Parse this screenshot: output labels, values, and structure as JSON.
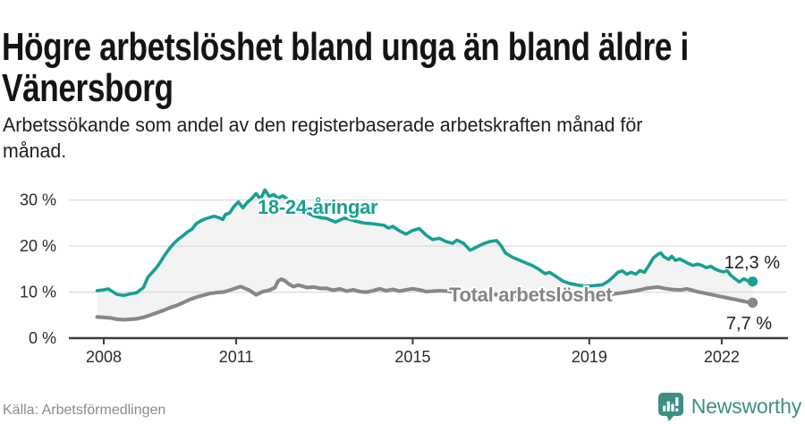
{
  "header": {
    "title": "Högre arbetslöshet bland unga än bland äldre i Vänersborg",
    "subtitle": "Arbetssökande som andel av den registerbaserade arbetskraften månad för månad."
  },
  "footer": {
    "source": "Källa: Arbetsförmedlingen",
    "brand": "Newsworthy"
  },
  "colors": {
    "accent_teal": "#17A091",
    "line_gray": "#878787",
    "area_fill": "#F3F3F3",
    "gridline": "#DBDBDB",
    "axis": "#3C3C3C",
    "tick_text": "#2B2B2B",
    "brand_teal": "#3E8E86"
  },
  "chart_data": {
    "type": "line",
    "title": "Högre arbetslöshet bland unga än bland äldre i Vänersborg",
    "ylabel": "",
    "xlabel": "",
    "ylim": [
      0,
      33
    ],
    "grid": true,
    "legend_position": "inline-labels",
    "y_ticks": [
      {
        "value": 0,
        "label": "0 %"
      },
      {
        "value": 10,
        "label": "10 %"
      },
      {
        "value": 20,
        "label": "20 %"
      },
      {
        "value": 30,
        "label": "30 %"
      }
    ],
    "x_ticks": [
      {
        "year": 2008,
        "label": "2008"
      },
      {
        "year": 2011,
        "label": "2011"
      },
      {
        "year": 2015,
        "label": "2015"
      },
      {
        "year": 2019,
        "label": "2019"
      },
      {
        "year": 2022,
        "label": "2022"
      }
    ],
    "series": [
      {
        "name": "18-24-åringar",
        "color": "#17A091",
        "end_label": "12,3 %",
        "end_value": 12.3,
        "points": [
          [
            2007.85,
            10.3
          ],
          [
            2008.0,
            10.5
          ],
          [
            2008.1,
            10.7
          ],
          [
            2008.2,
            10.1
          ],
          [
            2008.3,
            9.5
          ],
          [
            2008.45,
            9.3
          ],
          [
            2008.6,
            9.6
          ],
          [
            2008.75,
            9.9
          ],
          [
            2008.9,
            11.0
          ],
          [
            2009.0,
            13.2
          ],
          [
            2009.1,
            14.3
          ],
          [
            2009.2,
            15.4
          ],
          [
            2009.3,
            16.8
          ],
          [
            2009.4,
            18.3
          ],
          [
            2009.5,
            19.6
          ],
          [
            2009.6,
            20.7
          ],
          [
            2009.7,
            21.6
          ],
          [
            2009.8,
            22.3
          ],
          [
            2009.9,
            23.1
          ],
          [
            2010.0,
            23.7
          ],
          [
            2010.1,
            24.9
          ],
          [
            2010.2,
            25.5
          ],
          [
            2010.3,
            25.9
          ],
          [
            2010.4,
            26.2
          ],
          [
            2010.5,
            26.5
          ],
          [
            2010.6,
            26.2
          ],
          [
            2010.7,
            25.8
          ],
          [
            2010.75,
            26.8
          ],
          [
            2010.85,
            27.2
          ],
          [
            2010.95,
            28.6
          ],
          [
            2011.05,
            29.6
          ],
          [
            2011.15,
            28.3
          ],
          [
            2011.25,
            29.5
          ],
          [
            2011.35,
            30.3
          ],
          [
            2011.45,
            31.4
          ],
          [
            2011.55,
            30.2
          ],
          [
            2011.65,
            32.2
          ],
          [
            2011.75,
            30.8
          ],
          [
            2011.85,
            31.2
          ],
          [
            2011.95,
            30.4
          ],
          [
            2012.05,
            30.9
          ],
          [
            2012.15,
            30.3
          ],
          [
            2012.3,
            29.3
          ],
          [
            2012.45,
            28.2
          ],
          [
            2012.6,
            27.3
          ],
          [
            2012.75,
            26.6
          ],
          [
            2012.9,
            26.2
          ],
          [
            2013.05,
            26.0
          ],
          [
            2013.25,
            25.2
          ],
          [
            2013.45,
            26.1
          ],
          [
            2013.6,
            25.7
          ],
          [
            2013.75,
            25.3
          ],
          [
            2013.9,
            25.0
          ],
          [
            2014.05,
            24.9
          ],
          [
            2014.2,
            24.7
          ],
          [
            2014.35,
            24.5
          ],
          [
            2014.45,
            23.9
          ],
          [
            2014.55,
            24.3
          ],
          [
            2014.7,
            23.3
          ],
          [
            2014.85,
            22.6
          ],
          [
            2015.0,
            23.4
          ],
          [
            2015.15,
            23.8
          ],
          [
            2015.3,
            22.4
          ],
          [
            2015.45,
            21.4
          ],
          [
            2015.6,
            21.7
          ],
          [
            2015.75,
            21.0
          ],
          [
            2015.9,
            20.6
          ],
          [
            2016.0,
            21.3
          ],
          [
            2016.15,
            20.6
          ],
          [
            2016.3,
            19.1
          ],
          [
            2016.45,
            19.8
          ],
          [
            2016.6,
            20.5
          ],
          [
            2016.75,
            21.0
          ],
          [
            2016.9,
            21.2
          ],
          [
            2017.0,
            20.1
          ],
          [
            2017.1,
            18.5
          ],
          [
            2017.25,
            17.6
          ],
          [
            2017.4,
            17.0
          ],
          [
            2017.55,
            16.4
          ],
          [
            2017.7,
            15.8
          ],
          [
            2017.85,
            15.0
          ],
          [
            2018.0,
            14.0
          ],
          [
            2018.1,
            14.3
          ],
          [
            2018.25,
            13.4
          ],
          [
            2018.4,
            12.4
          ],
          [
            2018.55,
            11.9
          ],
          [
            2018.7,
            11.6
          ],
          [
            2018.9,
            11.3
          ],
          [
            2019.1,
            11.4
          ],
          [
            2019.3,
            11.6
          ],
          [
            2019.45,
            12.5
          ],
          [
            2019.55,
            13.4
          ],
          [
            2019.65,
            14.3
          ],
          [
            2019.75,
            14.6
          ],
          [
            2019.85,
            13.9
          ],
          [
            2019.95,
            14.3
          ],
          [
            2020.05,
            13.9
          ],
          [
            2020.15,
            14.7
          ],
          [
            2020.25,
            14.3
          ],
          [
            2020.35,
            15.8
          ],
          [
            2020.45,
            17.4
          ],
          [
            2020.55,
            18.2
          ],
          [
            2020.62,
            18.5
          ],
          [
            2020.7,
            17.6
          ],
          [
            2020.8,
            17.1
          ],
          [
            2020.87,
            17.8
          ],
          [
            2020.95,
            16.9
          ],
          [
            2021.05,
            17.2
          ],
          [
            2021.15,
            16.7
          ],
          [
            2021.25,
            16.2
          ],
          [
            2021.35,
            15.8
          ],
          [
            2021.45,
            16.1
          ],
          [
            2021.55,
            15.8
          ],
          [
            2021.65,
            15.3
          ],
          [
            2021.75,
            15.6
          ],
          [
            2021.85,
            15.0
          ],
          [
            2021.95,
            14.6
          ],
          [
            2022.05,
            14.4
          ],
          [
            2022.12,
            14.7
          ],
          [
            2022.2,
            13.7
          ],
          [
            2022.3,
            12.9
          ],
          [
            2022.4,
            12.2
          ],
          [
            2022.5,
            12.9
          ],
          [
            2022.6,
            12.4
          ],
          [
            2022.7,
            12.3
          ]
        ]
      },
      {
        "name": "Total arbetslöshet",
        "color": "#878787",
        "end_label": "7,7 %",
        "end_value": 7.7,
        "points": [
          [
            2007.85,
            4.6
          ],
          [
            2008.0,
            4.5
          ],
          [
            2008.15,
            4.4
          ],
          [
            2008.3,
            4.1
          ],
          [
            2008.45,
            4.0
          ],
          [
            2008.6,
            4.1
          ],
          [
            2008.75,
            4.2
          ],
          [
            2008.9,
            4.5
          ],
          [
            2009.05,
            5.0
          ],
          [
            2009.2,
            5.5
          ],
          [
            2009.35,
            6.0
          ],
          [
            2009.5,
            6.6
          ],
          [
            2009.65,
            7.1
          ],
          [
            2009.8,
            7.7
          ],
          [
            2009.95,
            8.4
          ],
          [
            2010.1,
            8.9
          ],
          [
            2010.25,
            9.3
          ],
          [
            2010.4,
            9.7
          ],
          [
            2010.55,
            9.9
          ],
          [
            2010.7,
            10.0
          ],
          [
            2010.85,
            10.4
          ],
          [
            2011.0,
            10.9
          ],
          [
            2011.1,
            11.2
          ],
          [
            2011.2,
            10.8
          ],
          [
            2011.3,
            10.4
          ],
          [
            2011.45,
            9.4
          ],
          [
            2011.6,
            10.1
          ],
          [
            2011.75,
            10.4
          ],
          [
            2011.88,
            11.0
          ],
          [
            2011.95,
            12.4
          ],
          [
            2012.02,
            12.8
          ],
          [
            2012.1,
            12.5
          ],
          [
            2012.2,
            11.7
          ],
          [
            2012.3,
            11.2
          ],
          [
            2012.4,
            11.5
          ],
          [
            2012.5,
            11.3
          ],
          [
            2012.6,
            11.0
          ],
          [
            2012.75,
            11.1
          ],
          [
            2012.9,
            10.8
          ],
          [
            2013.05,
            10.8
          ],
          [
            2013.2,
            10.4
          ],
          [
            2013.35,
            10.7
          ],
          [
            2013.5,
            10.2
          ],
          [
            2013.65,
            10.5
          ],
          [
            2013.8,
            10.1
          ],
          [
            2013.95,
            10.0
          ],
          [
            2014.1,
            10.3
          ],
          [
            2014.25,
            10.7
          ],
          [
            2014.4,
            10.3
          ],
          [
            2014.55,
            10.6
          ],
          [
            2014.7,
            10.2
          ],
          [
            2014.85,
            10.5
          ],
          [
            2015.0,
            10.7
          ],
          [
            2015.15,
            10.5
          ],
          [
            2015.3,
            10.1
          ],
          [
            2015.45,
            10.2
          ],
          [
            2015.6,
            10.3
          ],
          [
            2015.8,
            10.2
          ],
          [
            2016.0,
            10.0
          ],
          [
            2016.3,
            9.8
          ],
          [
            2016.6,
            9.6
          ],
          [
            2016.9,
            9.4
          ],
          [
            2017.2,
            9.2
          ],
          [
            2017.5,
            9.0
          ],
          [
            2017.8,
            8.9
          ],
          [
            2018.1,
            8.8
          ],
          [
            2018.4,
            8.8
          ],
          [
            2018.7,
            8.9
          ],
          [
            2019.0,
            9.0
          ],
          [
            2019.2,
            9.1
          ],
          [
            2019.4,
            9.3
          ],
          [
            2019.55,
            9.6
          ],
          [
            2019.7,
            9.8
          ],
          [
            2019.85,
            10.0
          ],
          [
            2020.0,
            10.2
          ],
          [
            2020.15,
            10.5
          ],
          [
            2020.3,
            10.8
          ],
          [
            2020.45,
            11.0
          ],
          [
            2020.55,
            11.1
          ],
          [
            2020.7,
            10.8
          ],
          [
            2020.85,
            10.6
          ],
          [
            2021.0,
            10.5
          ],
          [
            2021.1,
            10.5
          ],
          [
            2021.2,
            10.7
          ],
          [
            2021.3,
            10.5
          ],
          [
            2021.4,
            10.2
          ],
          [
            2021.5,
            10.0
          ],
          [
            2021.6,
            9.8
          ],
          [
            2021.7,
            9.6
          ],
          [
            2021.8,
            9.4
          ],
          [
            2021.9,
            9.2
          ],
          [
            2022.0,
            9.0
          ],
          [
            2022.1,
            8.8
          ],
          [
            2022.25,
            8.5
          ],
          [
            2022.4,
            8.2
          ],
          [
            2022.55,
            7.9
          ],
          [
            2022.7,
            7.7
          ]
        ]
      }
    ]
  }
}
